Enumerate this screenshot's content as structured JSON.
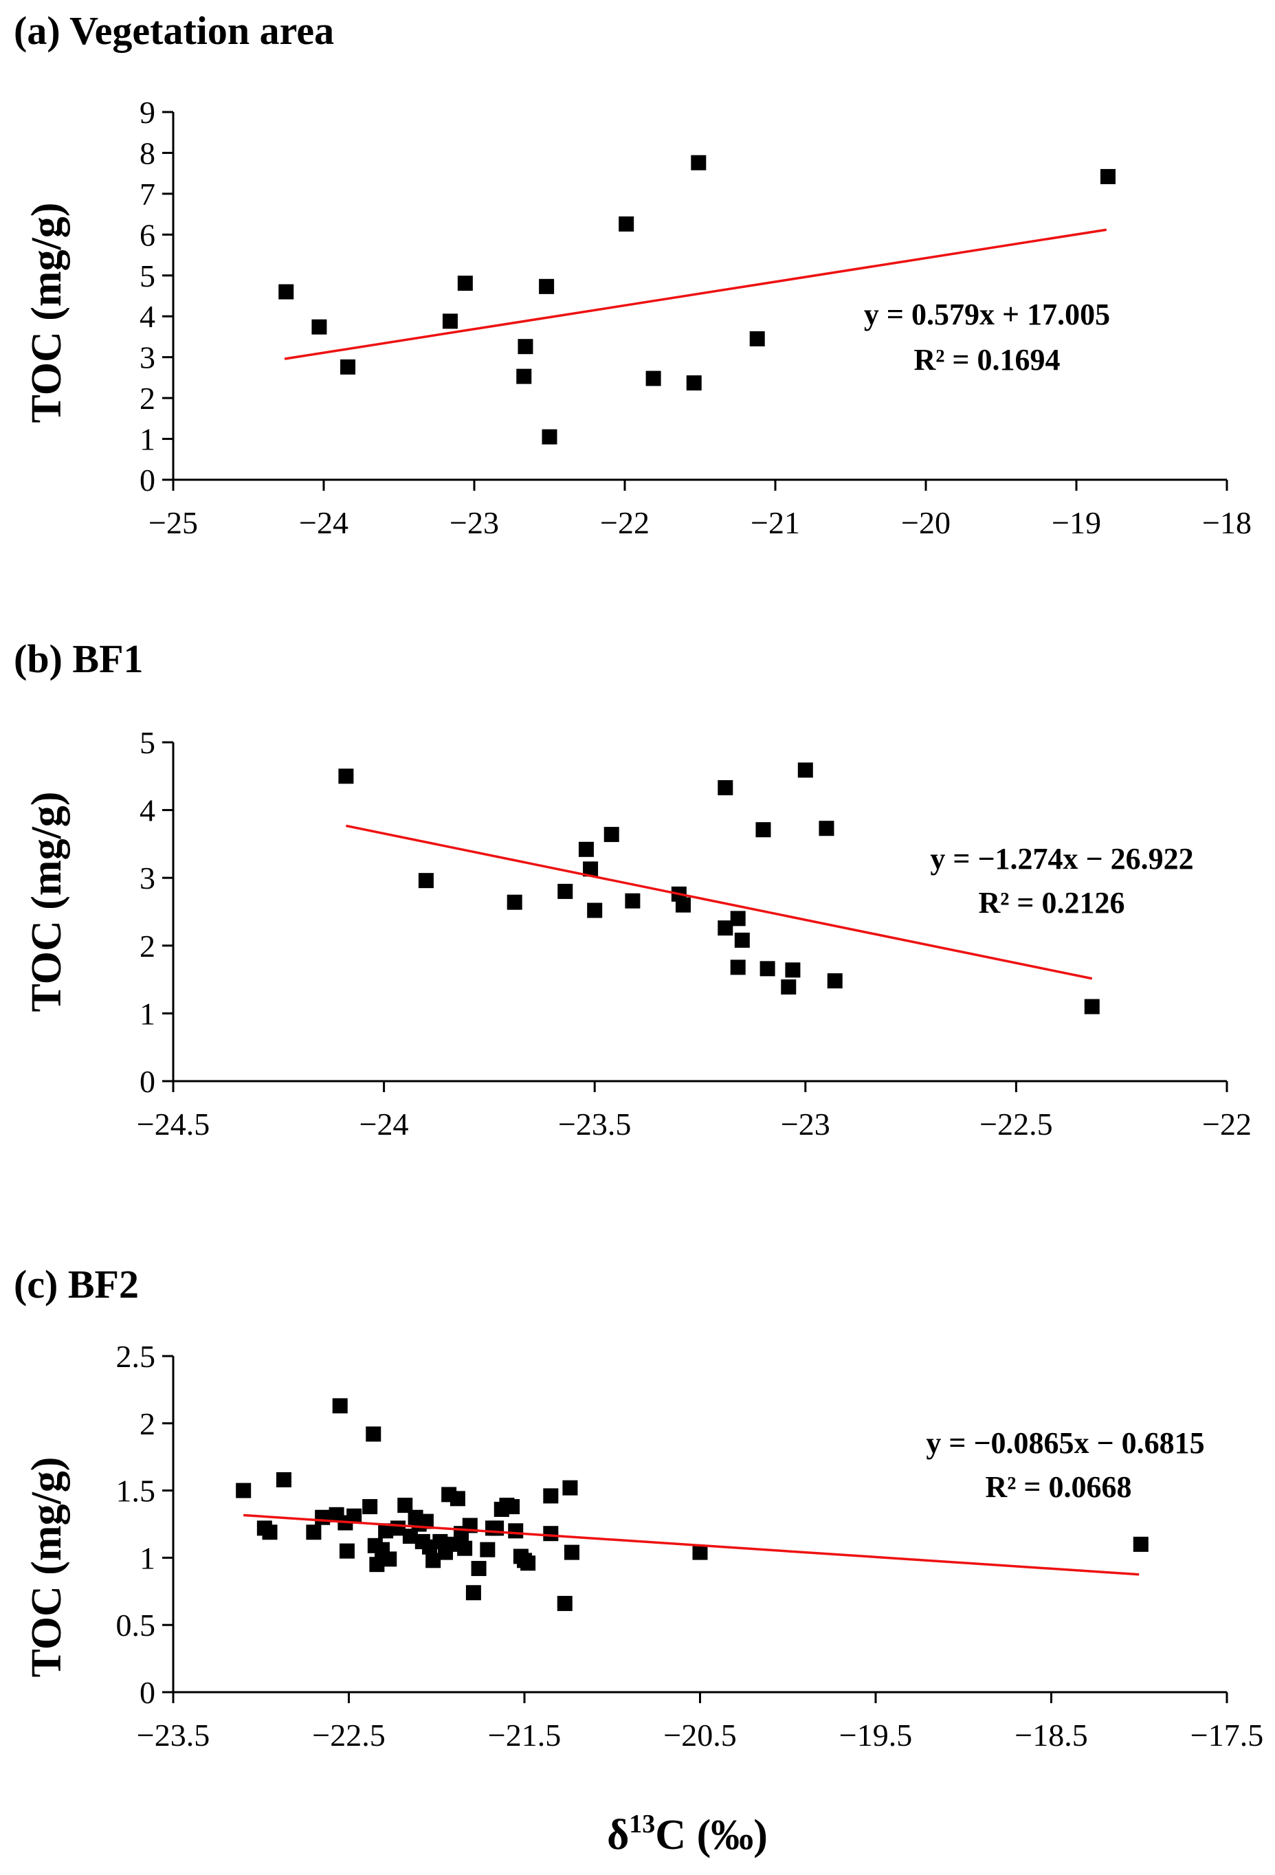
{
  "colors": {
    "axis": "#000000",
    "marker": "#000000",
    "trend": "#ee1111"
  },
  "xlabel": {
    "delta": "δ",
    "sup": "13",
    "rest": "C (‰)"
  },
  "chart_data": [
    {
      "type": "scatter",
      "title": "(a)  Vegetation area",
      "ylabel": "TOC (mg/g)",
      "xlim": [
        -25,
        -18
      ],
      "ylim": [
        0,
        9
      ],
      "xticks": [
        -25,
        -24,
        -23,
        -22,
        -21,
        -20,
        -19,
        -18
      ],
      "xtick_labels": [
        "−25",
        "−24",
        "−23",
        "−22",
        "−21",
        "−20",
        "−19",
        "−18"
      ],
      "yticks": [
        0,
        1,
        2,
        3,
        4,
        5,
        6,
        7,
        8,
        9
      ],
      "ytick_labels": [
        "0",
        "1",
        "2",
        "3",
        "4",
        "5",
        "6",
        "7",
        "8",
        "9"
      ],
      "points": [
        [
          -24.25,
          4.6
        ],
        [
          -24.03,
          3.74
        ],
        [
          -23.84,
          2.76
        ],
        [
          -23.16,
          3.88
        ],
        [
          -23.06,
          4.81
        ],
        [
          -22.66,
          3.26
        ],
        [
          -22.67,
          2.53
        ],
        [
          -22.52,
          4.73
        ],
        [
          -22.5,
          1.05
        ],
        [
          -21.99,
          6.26
        ],
        [
          -21.81,
          2.48
        ],
        [
          -21.51,
          7.76
        ],
        [
          -21.54,
          2.37
        ],
        [
          -21.12,
          3.45
        ],
        [
          -18.79,
          7.42
        ]
      ],
      "trendline": {
        "slope": 0.579,
        "intercept": 17.005,
        "x_range": [
          -24.26,
          -18.8
        ]
      },
      "equation": "y = 0.579x + 17.005",
      "r_squared": "R² = 0.1694"
    },
    {
      "type": "scatter",
      "title": "(b)  BF1",
      "ylabel": "TOC (mg/g)",
      "xlim": [
        -24.5,
        -22
      ],
      "ylim": [
        0,
        5
      ],
      "xticks": [
        -24.5,
        -24,
        -23.5,
        -23,
        -22.5,
        -22
      ],
      "xtick_labels": [
        "−24.5",
        "−24",
        "−23.5",
        "−23",
        "−22.5",
        "−22"
      ],
      "yticks": [
        0,
        1,
        2,
        3,
        4,
        5
      ],
      "ytick_labels": [
        "0",
        "1",
        "2",
        "3",
        "4",
        "5"
      ],
      "points": [
        [
          -24.09,
          4.5
        ],
        [
          -23.9,
          2.96
        ],
        [
          -23.69,
          2.64
        ],
        [
          -23.57,
          2.8
        ],
        [
          -23.52,
          3.42
        ],
        [
          -23.51,
          3.13
        ],
        [
          -23.5,
          2.52
        ],
        [
          -23.46,
          3.64
        ],
        [
          -23.41,
          2.66
        ],
        [
          -23.3,
          2.76
        ],
        [
          -23.29,
          2.6
        ],
        [
          -23.19,
          4.33
        ],
        [
          -23.19,
          2.26
        ],
        [
          -23.16,
          2.4
        ],
        [
          -23.15,
          2.08
        ],
        [
          -23.16,
          1.68
        ],
        [
          -23.1,
          3.71
        ],
        [
          -23.09,
          1.66
        ],
        [
          -23.04,
          1.39
        ],
        [
          -23.03,
          1.64
        ],
        [
          -23.0,
          4.59
        ],
        [
          -22.95,
          3.73
        ],
        [
          -22.93,
          1.48
        ],
        [
          -22.32,
          1.1
        ]
      ],
      "trendline": {
        "slope": -1.274,
        "intercept": -26.922,
        "x_range": [
          -24.09,
          -22.32
        ]
      },
      "equation": "y = −1.274x − 26.922",
      "r_squared": "R² = 0.2126"
    },
    {
      "type": "scatter",
      "title": "(c)  BF2",
      "ylabel": "TOC (mg/g)",
      "xlim": [
        -23.5,
        -17.5
      ],
      "ylim": [
        0,
        2.5
      ],
      "xticks": [
        -23.5,
        -22.5,
        -21.5,
        -20.5,
        -19.5,
        -18.5,
        -17.5
      ],
      "xtick_labels": [
        "−23.5",
        "−22.5",
        "−21.5",
        "−20.5",
        "−19.5",
        "−18.5",
        "−17.5"
      ],
      "yticks": [
        0,
        0.5,
        1,
        1.5,
        2,
        2.5
      ],
      "ytick_labels": [
        "0",
        "0.5",
        "1",
        "1.5",
        "2",
        "2.5"
      ],
      "points": [
        [
          -23.1,
          1.5
        ],
        [
          -22.98,
          1.22
        ],
        [
          -22.95,
          1.19
        ],
        [
          -22.87,
          1.58
        ],
        [
          -22.7,
          1.19
        ],
        [
          -22.65,
          1.3
        ],
        [
          -22.57,
          1.32
        ],
        [
          -22.55,
          2.13
        ],
        [
          -22.52,
          1.26
        ],
        [
          -22.51,
          1.05
        ],
        [
          -22.47,
          1.31
        ],
        [
          -22.38,
          1.38
        ],
        [
          -22.36,
          1.92
        ],
        [
          -22.35,
          1.09
        ],
        [
          -22.34,
          0.95
        ],
        [
          -22.31,
          1.06
        ],
        [
          -22.29,
          1.2
        ],
        [
          -22.27,
          0.99
        ],
        [
          -22.22,
          1.22
        ],
        [
          -22.18,
          1.39
        ],
        [
          -22.15,
          1.16
        ],
        [
          -22.12,
          1.3
        ],
        [
          -22.1,
          1.25
        ],
        [
          -22.08,
          1.12
        ],
        [
          -22.06,
          1.27
        ],
        [
          -22.04,
          1.08
        ],
        [
          -22.02,
          0.98
        ],
        [
          -21.98,
          1.12
        ],
        [
          -21.95,
          1.04
        ],
        [
          -21.93,
          1.47
        ],
        [
          -21.9,
          1.1
        ],
        [
          -21.88,
          1.44
        ],
        [
          -21.86,
          1.18
        ],
        [
          -21.84,
          1.07
        ],
        [
          -21.81,
          1.24
        ],
        [
          -21.79,
          0.74
        ],
        [
          -21.76,
          0.92
        ],
        [
          -21.71,
          1.06
        ],
        [
          -21.68,
          1.22
        ],
        [
          -21.66,
          1.22
        ],
        [
          -21.63,
          1.36
        ],
        [
          -21.6,
          1.39
        ],
        [
          -21.57,
          1.38
        ],
        [
          -21.55,
          1.2
        ],
        [
          -21.52,
          1.01
        ],
        [
          -21.5,
          0.98
        ],
        [
          -21.48,
          0.96
        ],
        [
          -21.35,
          1.46
        ],
        [
          -21.35,
          1.18
        ],
        [
          -21.27,
          0.66
        ],
        [
          -21.24,
          1.52
        ],
        [
          -21.23,
          1.04
        ],
        [
          -20.5,
          1.04
        ],
        [
          -17.99,
          1.1
        ]
      ],
      "trendline": {
        "slope": -0.0865,
        "intercept": -0.6815,
        "x_range": [
          -23.1,
          -18.0
        ]
      },
      "equation": "y = −0.0865x − 0.6815",
      "r_squared": "R² = 0.0668"
    }
  ]
}
